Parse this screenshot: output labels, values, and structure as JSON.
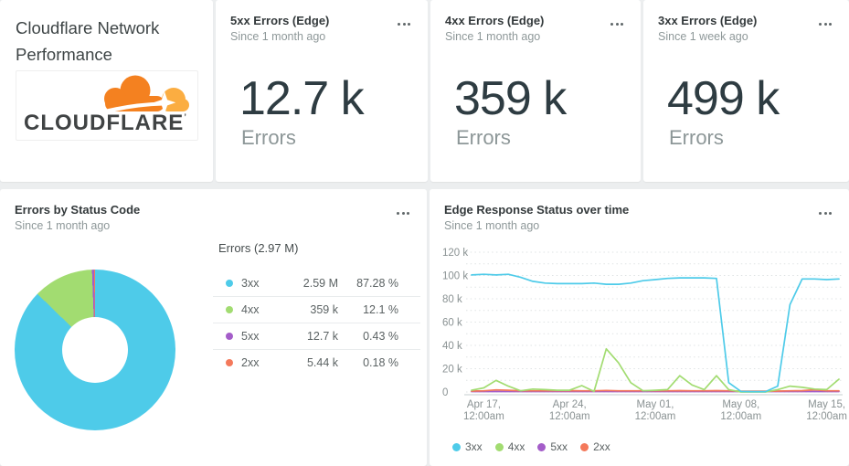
{
  "palette": {
    "3xx": "#4ecbe9",
    "4xx": "#a2dc71",
    "5xx": "#a45dc9",
    "2xx": "#f4795b",
    "brand_orange": "#f48120",
    "brand_orange_light": "#fbad41",
    "logo_text_color": "#404344"
  },
  "header_card": {
    "title": "Cloudflare Network Performance",
    "logo_text": "CLOUDFLARE",
    "logo_mark": "’"
  },
  "kpi_cards": [
    {
      "title": "5xx Errors (Edge)",
      "subtitle": "Since 1 month ago",
      "value": "12.7 k",
      "unit_label": "Errors"
    },
    {
      "title": "4xx Errors (Edge)",
      "subtitle": "Since 1 month ago",
      "value": "359 k",
      "unit_label": "Errors"
    },
    {
      "title": "3xx Errors (Edge)",
      "subtitle": "Since 1 week ago",
      "value": "499 k",
      "unit_label": "Errors"
    }
  ],
  "pie_card": {
    "title": "Errors by Status Code",
    "subtitle": "Since 1 month ago"
  },
  "line_card": {
    "title": "Edge Response Status over time",
    "subtitle": "Since 1 month ago"
  },
  "chart_data": [
    {
      "type": "pie",
      "title": "Errors by Status Code",
      "donut": true,
      "total_label": "Errors (2.97 M)",
      "slices": [
        {
          "label": "3xx",
          "value": 2590000,
          "value_label": "2.59 M",
          "pct": 87.28,
          "pct_label": "87.28 %",
          "color_key": "3xx"
        },
        {
          "label": "4xx",
          "value": 359000,
          "value_label": "359 k",
          "pct": 12.1,
          "pct_label": "12.1 %",
          "color_key": "4xx"
        },
        {
          "label": "5xx",
          "value": 12700,
          "value_label": "12.7 k",
          "pct": 0.43,
          "pct_label": "0.43 %",
          "color_key": "5xx"
        },
        {
          "label": "2xx",
          "value": 5440,
          "value_label": "5.44 k",
          "pct": 0.18,
          "pct_label": "0.18 %",
          "color_key": "2xx"
        }
      ]
    },
    {
      "type": "line",
      "title": "Edge Response Status over time",
      "unit": "thousands of errors per day",
      "ylim_k": [
        0,
        120
      ],
      "grid": "dotted horizontal every 10k",
      "legend_position": "bottom-left",
      "ylabel_ticks": [
        "120 k",
        "100 k",
        "80 k",
        "60 k",
        "40 k",
        "20 k",
        "0"
      ],
      "x_ticks": [
        {
          "index": 1,
          "line1": "Apr 17,",
          "line2": "12:00am"
        },
        {
          "index": 8,
          "line1": "Apr 24,",
          "line2": "12:00am"
        },
        {
          "index": 15,
          "line1": "May 01,",
          "line2": "12:00am"
        },
        {
          "index": 22,
          "line1": "May 08,",
          "line2": "12:00am"
        },
        {
          "index": 29,
          "line1": "May 15,",
          "line2": "12:00am"
        }
      ],
      "legend": [
        "3xx",
        "4xx",
        "5xx",
        "2xx"
      ],
      "series": [
        {
          "name": "5xx",
          "color_key": "5xx",
          "values_k": [
            0.4,
            0.4,
            0.4,
            0.4,
            0.4,
            0.4,
            0.4,
            0.4,
            0.4,
            0.4,
            0.4,
            0.4,
            0.4,
            0.4,
            0.4,
            0.4,
            0.4,
            0.4,
            0.4,
            0.4,
            0.4,
            0.4,
            0.4,
            0.4,
            0.4,
            0.4,
            0.4,
            0.4,
            0.4,
            0.4,
            0.4
          ]
        },
        {
          "name": "2xx",
          "color_key": "2xx",
          "values_k": [
            0.8,
            1,
            1.8,
            1.5,
            1,
            1,
            1,
            1,
            1.2,
            1,
            1,
            1.3,
            1,
            1,
            1,
            1,
            1,
            1.2,
            1,
            1,
            1.2,
            1,
            0.7,
            0.7,
            0.7,
            0.8,
            1,
            1.2,
            1.8,
            1,
            1
          ]
        },
        {
          "name": "4xx",
          "color_key": "4xx",
          "values_k": [
            1.5,
            3.5,
            10,
            5,
            1,
            2.5,
            2,
            1.5,
            1.5,
            5.5,
            0.5,
            37,
            25,
            8,
            1,
            1.5,
            2,
            14,
            6,
            2,
            14,
            2,
            0,
            0,
            0,
            2,
            5,
            4,
            2.5,
            2,
            11
          ]
        },
        {
          "name": "3xx",
          "color_key": "3xx",
          "values_k": [
            100.5,
            101,
            100.5,
            101,
            98.5,
            95,
            93.5,
            93,
            93,
            93,
            93.5,
            92.5,
            92.5,
            93.5,
            95.5,
            96.5,
            97.5,
            98,
            98,
            98,
            97.5,
            8,
            0.5,
            0.3,
            0.3,
            5,
            75,
            97,
            97,
            96.5,
            97
          ]
        }
      ]
    }
  ]
}
